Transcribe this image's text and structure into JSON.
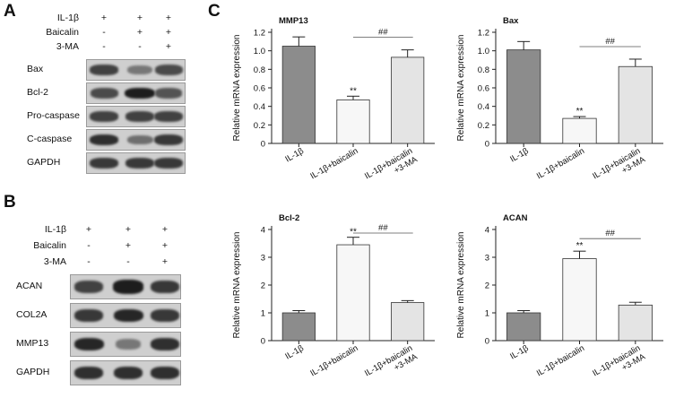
{
  "panel_labels": {
    "a": "A",
    "b": "B",
    "c": "C"
  },
  "blot_a": {
    "conditions": [
      {
        "name": "IL-1β",
        "signs": [
          "+",
          "+",
          "+"
        ]
      },
      {
        "name": "Baicalin",
        "signs": [
          "-",
          "+",
          "+"
        ]
      },
      {
        "name": "3-MA",
        "signs": [
          "-",
          "-",
          "+"
        ]
      }
    ],
    "bands": [
      {
        "name": "Bax",
        "intensity": [
          0.75,
          0.45,
          0.7
        ]
      },
      {
        "name": "Bcl-2",
        "intensity": [
          0.7,
          0.95,
          0.65
        ]
      },
      {
        "name": "Pro-caspase",
        "intensity": [
          0.75,
          0.75,
          0.75
        ]
      },
      {
        "name": "C-caspase",
        "intensity": [
          0.85,
          0.5,
          0.8
        ]
      },
      {
        "name": "GAPDH",
        "intensity": [
          0.8,
          0.8,
          0.8
        ]
      }
    ]
  },
  "blot_b": {
    "conditions": [
      {
        "name": "IL-1β",
        "signs": [
          "+",
          "+",
          "+"
        ]
      },
      {
        "name": "Baicalin",
        "signs": [
          "-",
          "+",
          "+"
        ]
      },
      {
        "name": "3-MA",
        "signs": [
          "-",
          "-",
          "+"
        ]
      }
    ],
    "bands": [
      {
        "name": "ACAN",
        "intensity": [
          0.75,
          0.95,
          0.8
        ]
      },
      {
        "name": "COL2A",
        "intensity": [
          0.8,
          0.9,
          0.8
        ]
      },
      {
        "name": "MMP13",
        "intensity": [
          0.9,
          0.45,
          0.85
        ]
      },
      {
        "name": "GAPDH",
        "intensity": [
          0.85,
          0.85,
          0.85
        ]
      }
    ]
  },
  "chart_data": [
    {
      "type": "bar",
      "title": "MMP13",
      "categories": [
        "IL-1β",
        "IL-1β+baicalin",
        "IL-1β+baicalin\n+3-MA"
      ],
      "values": [
        1.05,
        0.47,
        0.93
      ],
      "errors": [
        0.1,
        0.04,
        0.08
      ],
      "ylabel": "Relative mRNA expression",
      "ylim": [
        0,
        1.2
      ],
      "yticks": [
        "0",
        "0.2",
        "0.4",
        "0.6",
        "0.8",
        "1.0",
        "1.2"
      ],
      "fills": [
        "#8c8c8c",
        "#f7f7f7",
        "#e4e4e4"
      ],
      "stars": "**",
      "hash": "##"
    },
    {
      "type": "bar",
      "title": "Bax",
      "categories": [
        "IL-1β",
        "IL-1β+baicalin",
        "IL-1β+baicalin\n+3-MA"
      ],
      "values": [
        1.01,
        0.27,
        0.83
      ],
      "errors": [
        0.09,
        0.02,
        0.08
      ],
      "ylabel": "Relative mRNA expression",
      "ylim": [
        0,
        1.2
      ],
      "yticks": [
        "0",
        "0.2",
        "0.4",
        "0.6",
        "0.8",
        "1.0",
        "1.2"
      ],
      "fills": [
        "#8c8c8c",
        "#f7f7f7",
        "#e4e4e4"
      ],
      "stars": "**",
      "hash": "##"
    },
    {
      "type": "bar",
      "title": "Bcl-2",
      "categories": [
        "IL-1β",
        "IL-1β+baicalin",
        "IL-1β+baicalin\n+3-MA"
      ],
      "values": [
        1.0,
        3.45,
        1.37
      ],
      "errors": [
        0.08,
        0.27,
        0.07
      ],
      "ylabel": "Relative mRNA expression",
      "ylim": [
        0,
        4
      ],
      "yticks": [
        "0",
        "1",
        "2",
        "3",
        "4"
      ],
      "fills": [
        "#8c8c8c",
        "#f7f7f7",
        "#e4e4e4"
      ],
      "stars": "**",
      "hash": "##"
    },
    {
      "type": "bar",
      "title": "ACAN",
      "categories": [
        "IL-1β",
        "IL-1β+baicalin",
        "IL-1β+baicalin\n+3-MA"
      ],
      "values": [
        1.0,
        2.95,
        1.28
      ],
      "errors": [
        0.08,
        0.27,
        0.1
      ],
      "ylabel": "Relative mRNA expression",
      "ylim": [
        0,
        4
      ],
      "yticks": [
        "0",
        "1",
        "2",
        "3",
        "4"
      ],
      "fills": [
        "#8c8c8c",
        "#f7f7f7",
        "#e4e4e4"
      ],
      "stars": "**",
      "hash": "##"
    }
  ]
}
